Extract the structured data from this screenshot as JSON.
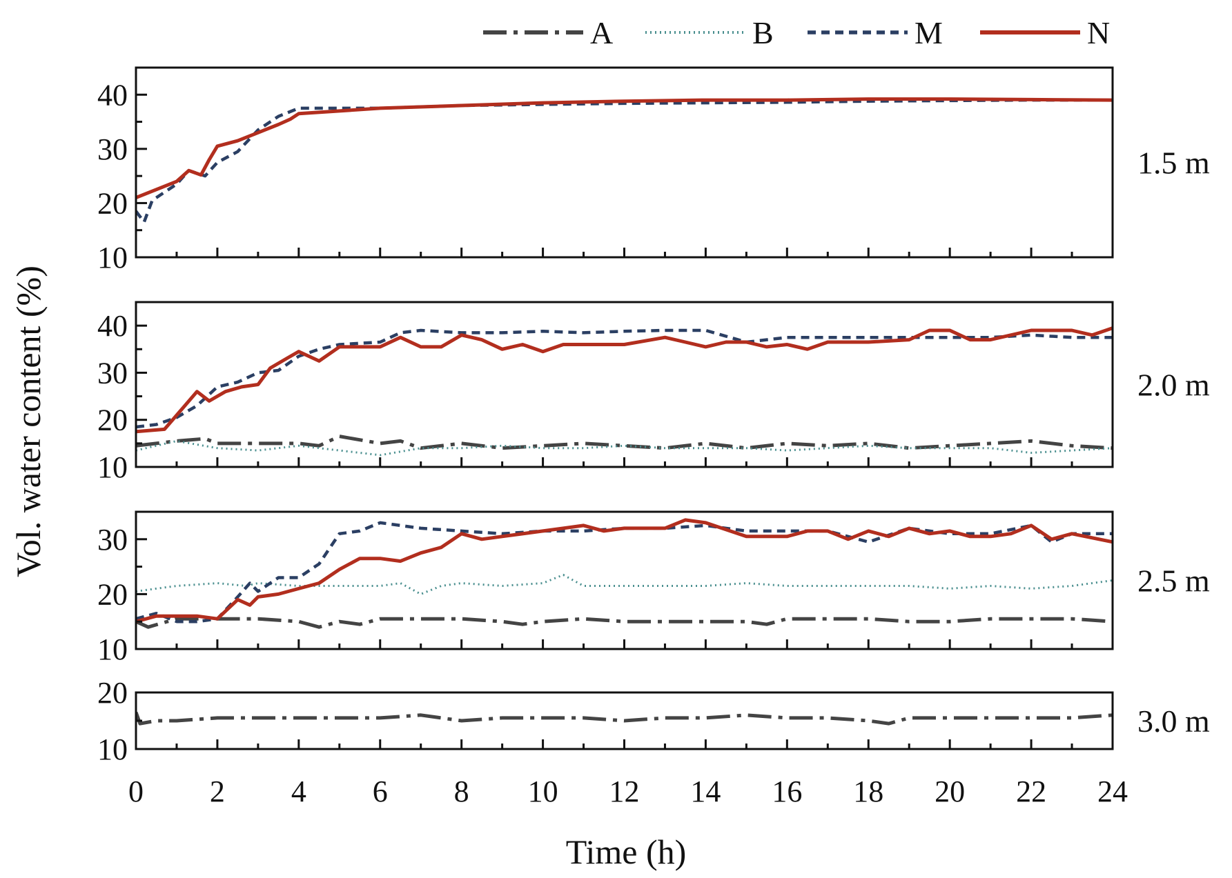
{
  "chart_data": {
    "type": "line",
    "xlabel": "Time (h)",
    "ylabel": "Vol. water content (%)",
    "xlim": [
      0,
      24
    ],
    "x_ticks": [
      "0",
      "2",
      "4",
      "6",
      "8",
      "10",
      "12",
      "14",
      "16",
      "18",
      "20",
      "22",
      "24"
    ],
    "legend": {
      "position": "top",
      "entries": [
        {
          "key": "A",
          "label": "A",
          "color": "#444444",
          "style": "dash-dot"
        },
        {
          "key": "B",
          "label": "B",
          "color": "#4a8f8f",
          "style": "dotted"
        },
        {
          "key": "M",
          "label": "M",
          "color": "#2b3f63",
          "style": "dashed"
        },
        {
          "key": "N",
          "label": "N",
          "color": "#b22e1e",
          "style": "solid"
        }
      ]
    },
    "panels": [
      {
        "depth_label": "1.5 m",
        "ylim": [
          10,
          45
        ],
        "y_ticks": [
          {
            "value": 10,
            "label": "10"
          },
          {
            "value": 20,
            "label": "20"
          },
          {
            "value": 30,
            "label": "30"
          },
          {
            "value": 40,
            "label": "40"
          }
        ],
        "series": [
          {
            "key": "M",
            "x": [
              0,
              0.2,
              0.4,
              0.7,
              1,
              1.3,
              1.7,
              2,
              2.5,
              3,
              3.5,
              4,
              5,
              6,
              8,
              10,
              12,
              14,
              16,
              18,
              20,
              22,
              24
            ],
            "values": [
              18.5,
              16.5,
              20.5,
              22,
              23.5,
              26,
              25,
              27.5,
              29.5,
              33.5,
              36,
              37.5,
              37.5,
              37.5,
              38,
              38.2,
              38.4,
              38.5,
              38.6,
              38.8,
              38.9,
              39,
              39
            ]
          },
          {
            "key": "N",
            "x": [
              0,
              0.5,
              1,
              1.3,
              1.6,
              1.8,
              2,
              2.5,
              3,
              3.5,
              3.8,
              4,
              5,
              6,
              8,
              10,
              12,
              14,
              16,
              18,
              20,
              22,
              24
            ],
            "values": [
              21,
              22.5,
              24,
              26,
              25.2,
              28,
              30.5,
              31.5,
              33,
              34.5,
              35.5,
              36.5,
              37,
              37.5,
              38,
              38.5,
              38.8,
              39,
              39,
              39.2,
              39.2,
              39.1,
              39
            ]
          }
        ]
      },
      {
        "depth_label": "2.0 m",
        "ylim": [
          10,
          45
        ],
        "y_ticks": [
          {
            "value": 10,
            "label": "10"
          },
          {
            "value": 20,
            "label": "20"
          },
          {
            "value": 30,
            "label": "30"
          },
          {
            "value": 40,
            "label": "40"
          }
        ],
        "series": [
          {
            "key": "A",
            "x": [
              0,
              1,
              1.7,
              2,
              3,
              4,
              4.5,
              5,
              6,
              6.5,
              7,
              8,
              9,
              10,
              11,
              12,
              13,
              14,
              15,
              16,
              17,
              18,
              19,
              20,
              21,
              22,
              23,
              24
            ],
            "values": [
              14.5,
              15.5,
              16,
              15,
              15,
              15,
              14.5,
              16.5,
              15,
              15.5,
              14,
              15,
              14,
              14.5,
              15,
              14.5,
              14,
              15,
              14,
              15,
              14.5,
              15,
              14,
              14.5,
              15,
              15.5,
              14.5,
              14
            ]
          },
          {
            "key": "B",
            "x": [
              0,
              1,
              2,
              3,
              4,
              5,
              6,
              7,
              8,
              9,
              10,
              11,
              12,
              13,
              14,
              15,
              16,
              17,
              18,
              19,
              20,
              21,
              22,
              23,
              24
            ],
            "values": [
              13.5,
              15.5,
              14,
              13.5,
              14.5,
              13.5,
              12.5,
              14,
              14,
              14.5,
              14,
              14,
              14.5,
              14,
              14,
              14,
              13.5,
              14,
              14.5,
              14,
              14,
              14,
              13,
              13.5,
              14
            ]
          },
          {
            "key": "M",
            "x": [
              0,
              0.5,
              1,
              1.5,
              2,
              2.5,
              3,
              3.5,
              4,
              4.5,
              5,
              6,
              6.5,
              7,
              8,
              9,
              10,
              11,
              12,
              13,
              14,
              15,
              16,
              17,
              18,
              19,
              20,
              21,
              22,
              23,
              24
            ],
            "values": [
              18.5,
              19,
              20.5,
              23,
              27,
              28,
              30,
              30.5,
              33.5,
              35,
              36,
              36.5,
              38.5,
              39,
              38.5,
              38.5,
              38.8,
              38.5,
              38.8,
              39,
              39,
              36.5,
              37.5,
              37.5,
              37.5,
              37.5,
              37.5,
              37.5,
              38,
              37.5,
              37.5
            ]
          },
          {
            "key": "N",
            "x": [
              0,
              0.7,
              1.2,
              1.5,
              1.8,
              2.2,
              2.6,
              3,
              3.3,
              3.7,
              4,
              4.5,
              5,
              6,
              6.5,
              7,
              7.5,
              8,
              8.5,
              9,
              9.5,
              10,
              10.5,
              11,
              12,
              13,
              13.5,
              14,
              14.5,
              15,
              15.5,
              16,
              16.5,
              17,
              18,
              19,
              19.5,
              20,
              20.5,
              21,
              21.5,
              22,
              22.5,
              23,
              23.5,
              24
            ],
            "values": [
              17.5,
              18,
              23,
              26,
              24,
              26,
              27,
              27.5,
              31,
              33,
              34.5,
              32.5,
              35.5,
              35.5,
              37.5,
              35.5,
              35.5,
              38,
              37,
              35,
              36,
              34.5,
              36,
              36,
              36,
              37.5,
              36.5,
              35.5,
              36.5,
              36.5,
              35.5,
              36,
              35,
              36.5,
              36.5,
              37,
              39,
              39,
              37,
              37,
              38,
              39,
              39,
              39,
              38,
              39.5
            ]
          }
        ]
      },
      {
        "depth_label": "2.5 m",
        "ylim": [
          10,
          35
        ],
        "y_ticks": [
          {
            "value": 10,
            "label": "10"
          },
          {
            "value": 20,
            "label": "20"
          },
          {
            "value": 30,
            "label": "30"
          }
        ],
        "series": [
          {
            "key": "A",
            "x": [
              0,
              0.3,
              1,
              2,
              3,
              4,
              4.5,
              5,
              5.5,
              6,
              7,
              8,
              9,
              9.5,
              10,
              11,
              12,
              13,
              14,
              15,
              15.5,
              16,
              17,
              18,
              19,
              20,
              21,
              22,
              23,
              24
            ],
            "values": [
              15,
              14,
              15.5,
              15.5,
              15.5,
              15,
              14,
              15,
              14.5,
              15.5,
              15.5,
              15.5,
              15,
              14.5,
              15,
              15.5,
              15,
              15,
              15,
              15,
              14.5,
              15.5,
              15.5,
              15.5,
              15,
              15,
              15.5,
              15.5,
              15.5,
              15
            ]
          },
          {
            "key": "B",
            "x": [
              0,
              0.5,
              1,
              2,
              2.7,
              3,
              4,
              5,
              6,
              6.5,
              7,
              7.5,
              8,
              9,
              10,
              10.5,
              11,
              12,
              13,
              14,
              15,
              16,
              17,
              18,
              19,
              20,
              21,
              22,
              23,
              24
            ],
            "values": [
              20.5,
              21,
              21.5,
              22,
              21.5,
              22,
              21.5,
              21.5,
              21.5,
              22,
              20,
              21.5,
              22,
              21.5,
              22,
              23.5,
              21.5,
              21.5,
              21.5,
              21.5,
              22,
              21.5,
              21.5,
              21.5,
              21.5,
              21,
              21.5,
              21,
              21.5,
              22.5
            ]
          },
          {
            "key": "M",
            "x": [
              0,
              0.5,
              1,
              1.5,
              2,
              2.5,
              2.8,
              3,
              3.5,
              4,
              4.5,
              5,
              5.5,
              6,
              7,
              8,
              9,
              10,
              11,
              12,
              13,
              14,
              15,
              16,
              17,
              18,
              19,
              20,
              21,
              22,
              22.5,
              23,
              24
            ],
            "values": [
              15.5,
              16.5,
              15,
              15,
              15.5,
              19.5,
              22,
              20.5,
              23,
              23,
              25.5,
              31,
              31.5,
              33,
              32,
              31.5,
              31,
              31.5,
              31.5,
              32,
              32,
              32.5,
              31.5,
              31.5,
              31.5,
              29.5,
              32,
              31,
              31,
              32.5,
              29.5,
              31,
              31
            ]
          },
          {
            "key": "N",
            "x": [
              0,
              0.5,
              1,
              1.5,
              2,
              2.5,
              2.8,
              3,
              3.5,
              4,
              4.5,
              5,
              5.5,
              6,
              6.5,
              7,
              7.5,
              8,
              8.5,
              9,
              10,
              11,
              11.5,
              12,
              12.5,
              13,
              13.5,
              14,
              15,
              16,
              16.5,
              17,
              17.5,
              18,
              18.5,
              19,
              19.5,
              20,
              20.5,
              21,
              21.5,
              22,
              22.5,
              23,
              24
            ],
            "values": [
              15,
              16,
              16,
              16,
              15.5,
              19,
              18,
              19.5,
              20,
              21,
              22,
              24.5,
              26.5,
              26.5,
              26,
              27.5,
              28.5,
              31,
              30,
              30.5,
              31.5,
              32.5,
              31.5,
              32,
              32,
              32,
              33.5,
              33,
              30.5,
              30.5,
              31.5,
              31.5,
              30,
              31.5,
              30.5,
              32,
              31,
              31.5,
              30.5,
              30.5,
              31,
              32.5,
              30,
              31,
              29.5
            ]
          }
        ]
      },
      {
        "depth_label": "3.0 m",
        "ylim": [
          10,
          20
        ],
        "y_ticks": [
          {
            "value": 10,
            "label": "10"
          },
          {
            "value": 20,
            "label": "20"
          }
        ],
        "series": [
          {
            "key": "A",
            "x": [
              0,
              0.1,
              0.5,
              1,
              2,
              3,
              4,
              5,
              6,
              7,
              8,
              9,
              10,
              11,
              12,
              13,
              14,
              15,
              16,
              17,
              18,
              18.5,
              19,
              20,
              21,
              22,
              23,
              24
            ],
            "values": [
              16.5,
              14.5,
              15,
              15,
              15.5,
              15.5,
              15.5,
              15.5,
              15.5,
              16,
              15,
              15.5,
              15.5,
              15.5,
              15,
              15.5,
              15.5,
              16,
              15.5,
              15.5,
              15,
              14.5,
              15.5,
              15.5,
              15.5,
              15.5,
              15.5,
              16
            ]
          }
        ]
      }
    ]
  }
}
